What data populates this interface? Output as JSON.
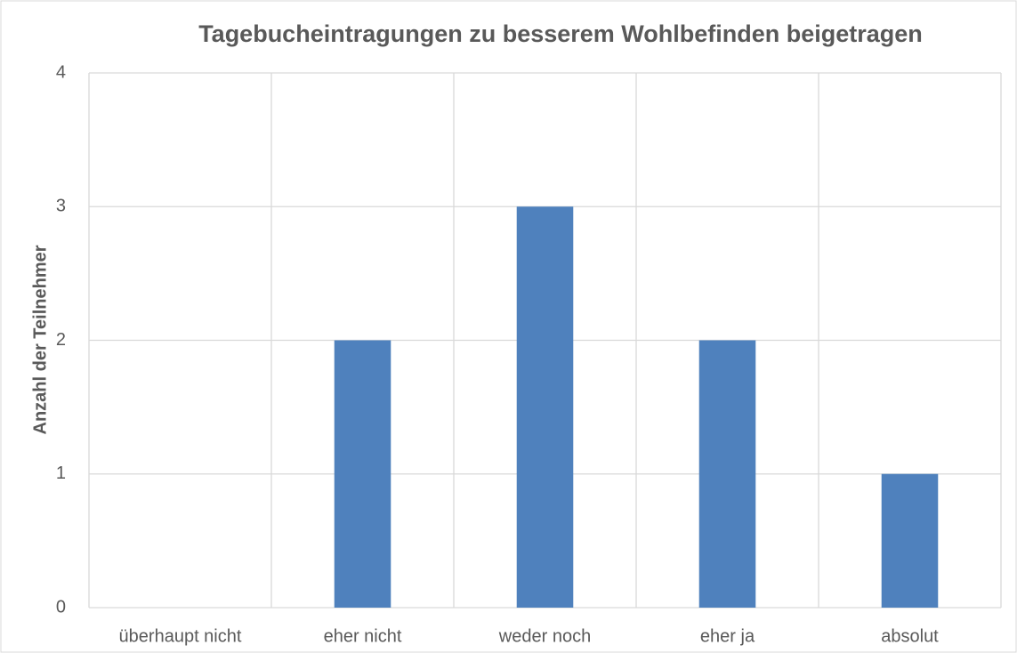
{
  "chart_data": {
    "type": "bar",
    "title": "Tagebucheintragungen zu besserem Wohlbefinden beigetragen",
    "y_label": "Anzahl der Teilnehmer",
    "categories": [
      "überhaupt nicht",
      "eher nicht",
      "weder noch",
      "eher ja",
      "absolut"
    ],
    "values": [
      0,
      2,
      3,
      2,
      1
    ],
    "color": "#4f81bd",
    "ylim": [
      0,
      4
    ],
    "yticks": [
      0,
      1,
      2,
      3,
      4
    ],
    "grid": true
  }
}
